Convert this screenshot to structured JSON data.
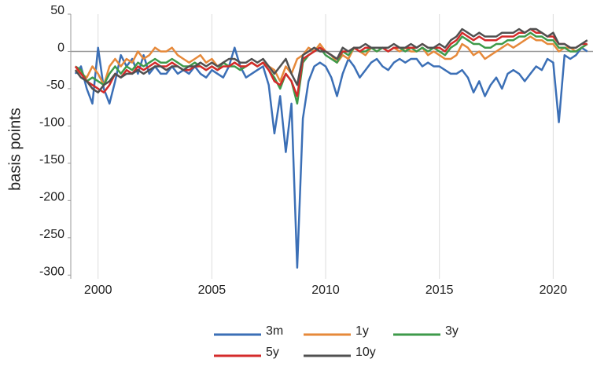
{
  "chart_data": {
    "type": "line",
    "ylabel": "basis points",
    "x": [
      1999.0,
      1999.25,
      1999.5,
      1999.75,
      2000.0,
      2000.25,
      2000.5,
      2000.75,
      2001.0,
      2001.25,
      2001.5,
      2001.75,
      2002.0,
      2002.25,
      2002.5,
      2002.75,
      2003.0,
      2003.25,
      2003.5,
      2003.75,
      2004.0,
      2004.25,
      2004.5,
      2004.75,
      2005.0,
      2005.25,
      2005.5,
      2005.75,
      2006.0,
      2006.25,
      2006.5,
      2006.75,
      2007.0,
      2007.25,
      2007.5,
      2007.75,
      2008.0,
      2008.25,
      2008.5,
      2008.75,
      2009.0,
      2009.25,
      2009.5,
      2009.75,
      2010.0,
      2010.25,
      2010.5,
      2010.75,
      2011.0,
      2011.25,
      2011.5,
      2011.75,
      2012.0,
      2012.25,
      2012.5,
      2012.75,
      2013.0,
      2013.25,
      2013.5,
      2013.75,
      2014.0,
      2014.25,
      2014.5,
      2014.75,
      2015.0,
      2015.25,
      2015.5,
      2015.75,
      2016.0,
      2016.25,
      2016.5,
      2016.75,
      2017.0,
      2017.25,
      2017.5,
      2017.75,
      2018.0,
      2018.25,
      2018.5,
      2018.75,
      2019.0,
      2019.25,
      2019.5,
      2019.75,
      2020.0,
      2020.25,
      2020.5,
      2020.75,
      2021.0,
      2021.25,
      2021.5
    ],
    "series": [
      {
        "name": "3m",
        "color": "#3b6fb6",
        "values": [
          -30,
          -20,
          -50,
          -70,
          5,
          -50,
          -70,
          -40,
          -5,
          -20,
          -10,
          -30,
          -5,
          -30,
          -20,
          -30,
          -30,
          -20,
          -30,
          -25,
          -30,
          -20,
          -30,
          -35,
          -25,
          -30,
          -35,
          -20,
          5,
          -20,
          -35,
          -30,
          -25,
          -20,
          -45,
          -110,
          -60,
          -135,
          -70,
          -290,
          -90,
          -40,
          -20,
          -15,
          -20,
          -35,
          -60,
          -30,
          -10,
          -20,
          -35,
          -25,
          -15,
          -10,
          -20,
          -25,
          -15,
          -10,
          -15,
          -10,
          -10,
          -20,
          -15,
          -20,
          -20,
          -25,
          -30,
          -30,
          -25,
          -35,
          -55,
          -40,
          -60,
          -45,
          -35,
          -50,
          -30,
          -25,
          -30,
          -40,
          -30,
          -20,
          -25,
          -10,
          -15,
          -95,
          -5,
          -10,
          -5,
          5,
          0
        ]
      },
      {
        "name": "1y",
        "color": "#e6893a",
        "values": [
          -25,
          -30,
          -35,
          -20,
          -30,
          -45,
          -20,
          -10,
          -20,
          -10,
          -15,
          0,
          -10,
          -5,
          5,
          0,
          0,
          5,
          -5,
          -10,
          -15,
          -10,
          -5,
          -15,
          -10,
          -20,
          -15,
          -20,
          -15,
          -20,
          -20,
          -15,
          -20,
          -15,
          -20,
          -25,
          -40,
          -20,
          -30,
          -10,
          -5,
          5,
          0,
          10,
          0,
          -5,
          -15,
          -5,
          -10,
          5,
          0,
          -5,
          5,
          0,
          5,
          0,
          5,
          0,
          5,
          0,
          0,
          5,
          -5,
          0,
          -5,
          -10,
          -10,
          -5,
          10,
          5,
          -5,
          0,
          -10,
          -5,
          0,
          5,
          10,
          5,
          10,
          15,
          20,
          15,
          15,
          10,
          10,
          0,
          5,
          5,
          0,
          5,
          10
        ]
      },
      {
        "name": "3y",
        "color": "#3e9a4a",
        "values": [
          -20,
          -25,
          -40,
          -35,
          -40,
          -45,
          -30,
          -20,
          -30,
          -20,
          -25,
          -15,
          -20,
          -15,
          -10,
          -15,
          -15,
          -10,
          -15,
          -20,
          -20,
          -15,
          -20,
          -25,
          -20,
          -25,
          -15,
          -20,
          -20,
          -25,
          -20,
          -15,
          -20,
          -15,
          -25,
          -35,
          -50,
          -30,
          -40,
          -70,
          -15,
          -5,
          0,
          5,
          -5,
          -10,
          -15,
          0,
          -5,
          5,
          0,
          0,
          5,
          0,
          5,
          0,
          5,
          5,
          0,
          5,
          0,
          5,
          0,
          5,
          0,
          -5,
          5,
          10,
          20,
          15,
          10,
          10,
          5,
          5,
          10,
          10,
          15,
          15,
          20,
          20,
          25,
          20,
          20,
          15,
          15,
          5,
          5,
          0,
          0,
          5,
          10
        ]
      },
      {
        "name": "5y",
        "color": "#d42a2a",
        "values": [
          -20,
          -30,
          -40,
          -45,
          -50,
          -55,
          -45,
          -30,
          -35,
          -25,
          -30,
          -20,
          -25,
          -20,
          -15,
          -20,
          -20,
          -15,
          -20,
          -25,
          -25,
          -20,
          -20,
          -25,
          -20,
          -25,
          -20,
          -20,
          -15,
          -20,
          -20,
          -15,
          -20,
          -15,
          -25,
          -40,
          -45,
          -30,
          -40,
          -60,
          -10,
          -5,
          0,
          5,
          0,
          -5,
          -10,
          0,
          0,
          5,
          0,
          5,
          5,
          5,
          5,
          0,
          5,
          5,
          5,
          5,
          5,
          10,
          5,
          5,
          5,
          0,
          10,
          15,
          25,
          20,
          15,
          20,
          15,
          15,
          15,
          20,
          20,
          20,
          25,
          25,
          30,
          25,
          25,
          20,
          20,
          10,
          10,
          5,
          5,
          10,
          10
        ]
      },
      {
        "name": "10y",
        "color": "#505050",
        "values": [
          -25,
          -35,
          -40,
          -50,
          -55,
          -45,
          -40,
          -30,
          -35,
          -30,
          -30,
          -25,
          -30,
          -25,
          -20,
          -20,
          -25,
          -20,
          -20,
          -25,
          -20,
          -20,
          -15,
          -20,
          -15,
          -20,
          -15,
          -10,
          -10,
          -15,
          -15,
          -10,
          -15,
          -10,
          -20,
          -30,
          -20,
          -10,
          -30,
          -45,
          -5,
          0,
          5,
          0,
          0,
          -5,
          -10,
          5,
          0,
          5,
          5,
          10,
          5,
          5,
          5,
          5,
          10,
          5,
          5,
          10,
          5,
          10,
          5,
          5,
          10,
          5,
          15,
          20,
          30,
          25,
          20,
          25,
          20,
          20,
          20,
          25,
          25,
          25,
          30,
          25,
          30,
          30,
          25,
          20,
          25,
          10,
          10,
          5,
          5,
          10,
          15
        ]
      }
    ],
    "xlim": [
      1998.8,
      2021.75
    ],
    "xticks": [
      2000,
      2005,
      2010,
      2015,
      2020
    ],
    "ylim": [
      -305,
      50
    ],
    "yticks": [
      50,
      0,
      -50,
      -100,
      -150,
      -200,
      -250,
      -300
    ],
    "grid": true,
    "legend": "bottom"
  }
}
